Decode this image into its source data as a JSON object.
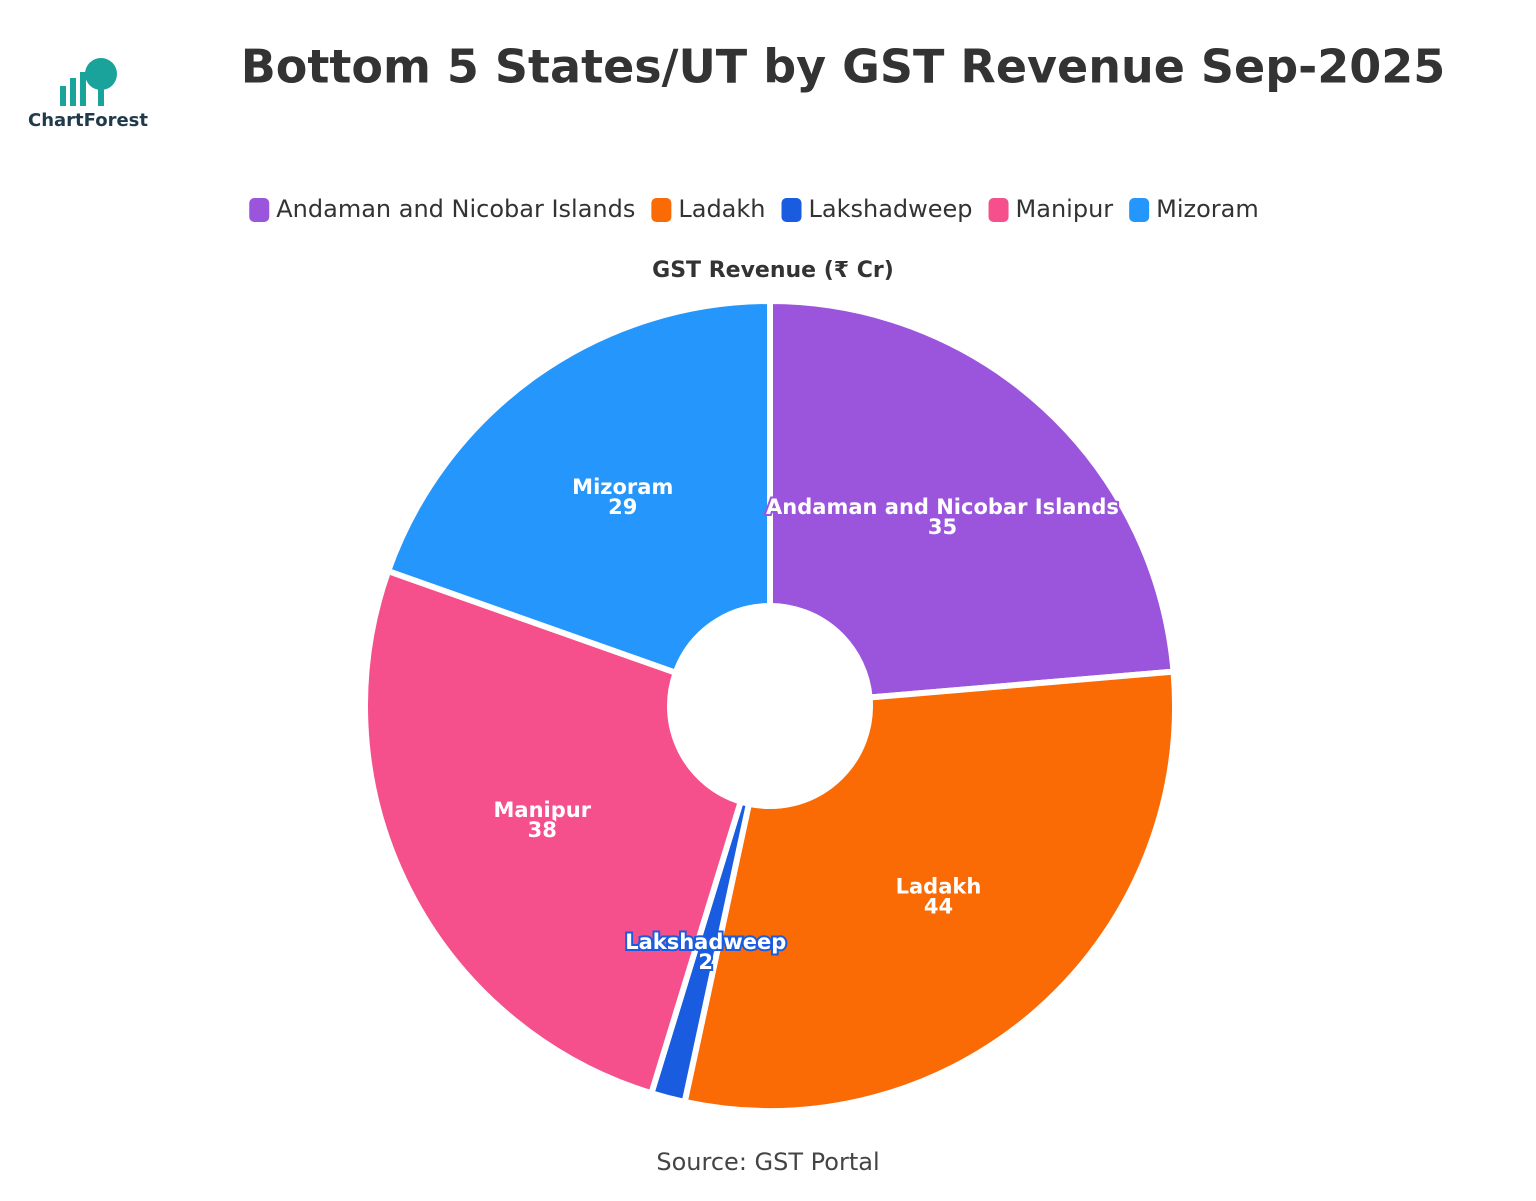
{
  "logo": "ChartForest",
  "chart_data": {
    "type": "donut",
    "title": "Bottom 5 States/UT by GST Revenue Sep-2025",
    "subtitle": "GST Revenue (₹ Cr)",
    "source": "Source: GST Portal",
    "categories": [
      "Andaman and Nicobar Islands",
      "Ladakh",
      "Lakshadweep",
      "Manipur",
      "Mizoram"
    ],
    "values": [
      35,
      44,
      2,
      38,
      29
    ],
    "colors": [
      "#9b55dc",
      "#fa6a05",
      "#1a5ce0",
      "#f5508c",
      "#2496fc"
    ],
    "legend": "top"
  }
}
